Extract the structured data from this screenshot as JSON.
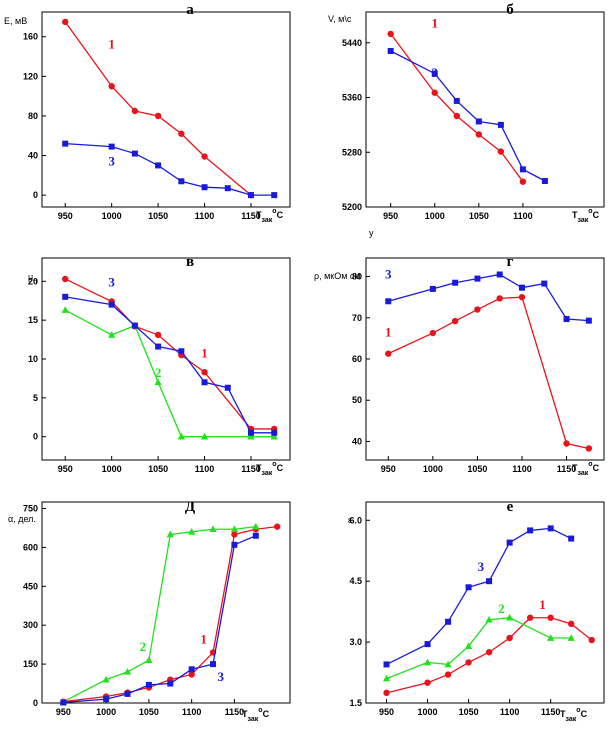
{
  "colors": {
    "s1": "#e8141b",
    "s2": "#1ee21e",
    "s3": "#1a1ad9"
  },
  "chart_data": [
    {
      "id": "a",
      "type": "line",
      "letter": "а",
      "ylabel": "E, мВ",
      "xlabel_main": "T",
      "xlabel_sub": "зак",
      "xlabel_sup": "o",
      "xlabel_end": "C",
      "xticks": [
        950,
        1000,
        1050,
        1100,
        1150
      ],
      "xtick_labels": [
        "950",
        "1000",
        "1050",
        "1100",
        "1150"
      ],
      "yticks": [
        0,
        40,
        80,
        120,
        160
      ],
      "ytick_labels": [
        "0",
        "40",
        "80",
        "120",
        "160"
      ],
      "xlim": [
        925,
        1192
      ],
      "ylim": [
        -12,
        185
      ],
      "series": [
        {
          "name": "1",
          "color": "s1",
          "marker": "circle",
          "x": [
            950,
            1000,
            1025,
            1050,
            1075,
            1100,
            1150
          ],
          "y": [
            175,
            110,
            85,
            80,
            62,
            39,
            0
          ]
        },
        {
          "name": "3",
          "color": "s3",
          "marker": "square",
          "x": [
            950,
            1000,
            1025,
            1050,
            1075,
            1100,
            1125,
            1150,
            1175
          ],
          "y": [
            52,
            49,
            42,
            30,
            14,
            8,
            7,
            0,
            0
          ]
        }
      ],
      "labels": [
        {
          "text": "1",
          "color": "s1",
          "dx": 1000,
          "dy": 148
        },
        {
          "text": "3",
          "color": "s3",
          "dx": 1000,
          "dy": 30
        }
      ]
    },
    {
      "id": "b",
      "type": "line",
      "letter": "б",
      "ylabel": "V, м\\с",
      "xlabel_main": "T",
      "xlabel_sub": "зак",
      "xlabel_sup": "o",
      "xlabel_end": "C",
      "xticks": [
        950,
        1000,
        1050,
        1100
      ],
      "xtick_labels": [
        "950",
        "1000",
        "1050",
        "1100"
      ],
      "yticks": [
        5200,
        5280,
        5360,
        5440
      ],
      "ytick_labels": [
        "5200",
        "5280",
        "5360",
        "5440"
      ],
      "xlim": [
        922,
        1192
      ],
      "ylim": [
        5200,
        5485
      ],
      "series": [
        {
          "name": "1",
          "color": "s1",
          "marker": "circle",
          "x": [
            950,
            1000,
            1025,
            1050,
            1075,
            1100
          ],
          "y": [
            5453,
            5367,
            5333,
            5306,
            5281,
            5237
          ]
        },
        {
          "name": "3",
          "color": "s3",
          "marker": "square",
          "x": [
            950,
            1000,
            1025,
            1050,
            1075,
            1100,
            1125
          ],
          "y": [
            5428,
            5395,
            5355,
            5325,
            5320,
            5255,
            5238
          ]
        }
      ],
      "labels": [
        {
          "text": "1",
          "color": "s1",
          "dx": 1000,
          "dy": 5462
        },
        {
          "text": "3",
          "color": "s3",
          "dx": 1000,
          "dy": 5390
        }
      ],
      "stray_text": "y"
    },
    {
      "id": "v",
      "type": "line",
      "letter": "в",
      "ylabel": "μ",
      "ylabel_sub": "н",
      "xlabel_main": "T",
      "xlabel_sub": "зак",
      "xlabel_sup": "o",
      "xlabel_end": "C",
      "xticks": [
        950,
        1000,
        1050,
        1100,
        1150
      ],
      "xtick_labels": [
        "950",
        "1000",
        "1050",
        "1100",
        "1150"
      ],
      "yticks": [
        0,
        5,
        10,
        15,
        20
      ],
      "ytick_labels": [
        "0",
        "5",
        "10",
        "15",
        "20"
      ],
      "xlim": [
        925,
        1192
      ],
      "ylim": [
        -3,
        23
      ],
      "series": [
        {
          "name": "1",
          "color": "s1",
          "marker": "circle",
          "x": [
            950,
            1000,
            1025,
            1050,
            1075,
            1100,
            1150,
            1175
          ],
          "y": [
            20.3,
            17.4,
            14.2,
            13.1,
            10.5,
            8.3,
            1.0,
            1.0
          ]
        },
        {
          "name": "2",
          "color": "s2",
          "marker": "triangle",
          "x": [
            950,
            1000,
            1025,
            1050,
            1075,
            1100,
            1150,
            1175
          ],
          "y": [
            16.3,
            13.1,
            14.3,
            7.0,
            0,
            0,
            0,
            0
          ]
        },
        {
          "name": "3",
          "color": "s3",
          "marker": "square",
          "x": [
            950,
            1000,
            1025,
            1050,
            1075,
            1100,
            1125,
            1150,
            1175
          ],
          "y": [
            18.0,
            17.0,
            14.3,
            11.6,
            11.0,
            7.0,
            6.3,
            0.5,
            0.5
          ]
        }
      ],
      "labels": [
        {
          "text": "3",
          "color": "s3",
          "dx": 1000,
          "dy": 19.3
        },
        {
          "text": "1",
          "color": "s1",
          "dx": 1100,
          "dy": 10.2
        },
        {
          "text": "2",
          "color": "s2",
          "dx": 1050,
          "dy": 7.7
        }
      ]
    },
    {
      "id": "g",
      "type": "line",
      "letter": "г",
      "ylabel": "ρ, мкОм см",
      "xlabel_main": "T",
      "xlabel_sub": "зак",
      "xlabel_sup": "o",
      "xlabel_end": "C",
      "xticks": [
        950,
        1000,
        1050,
        1100,
        1150
      ],
      "xtick_labels": [
        "950",
        "1000",
        "1050",
        "1100",
        "1150"
      ],
      "yticks": [
        40,
        50,
        60,
        70,
        80
      ],
      "ytick_labels": [
        "40",
        "50",
        "60",
        "70",
        "80"
      ],
      "xlim": [
        925,
        1192
      ],
      "ylim": [
        35.5,
        84.5
      ],
      "series": [
        {
          "name": "1",
          "color": "s1",
          "marker": "circle",
          "x": [
            950,
            1000,
            1025,
            1050,
            1075,
            1100,
            1150,
            1175
          ],
          "y": [
            61.3,
            66.3,
            69.2,
            72.0,
            74.7,
            75.0,
            39.5,
            38.3
          ]
        },
        {
          "name": "3",
          "color": "s3",
          "marker": "square",
          "x": [
            950,
            1000,
            1025,
            1050,
            1075,
            1100,
            1125,
            1150,
            1175
          ],
          "y": [
            74.0,
            77.0,
            78.5,
            79.5,
            80.5,
            77.3,
            78.3,
            69.7,
            69.3
          ]
        }
      ],
      "labels": [
        {
          "text": "3",
          "color": "s3",
          "dx": 950,
          "dy": 79.5
        },
        {
          "text": "1",
          "color": "s1",
          "dx": 950,
          "dy": 65.5
        }
      ]
    },
    {
      "id": "d",
      "type": "line",
      "letter": "Д",
      "ylabel": "α, дел.",
      "xlabel_main": "T",
      "xlabel_sub": "зак",
      "xlabel_sup": "o",
      "xlabel_end": "C",
      "xticks": [
        950,
        1000,
        1050,
        1100,
        1150
      ],
      "xtick_labels": [
        "950",
        "1000",
        "1050",
        "1100",
        "1150"
      ],
      "yticks": [
        0,
        150,
        300,
        450,
        600,
        750
      ],
      "ytick_labels": [
        "0",
        "150",
        "300",
        "450",
        "600",
        "750"
      ],
      "xlim": [
        925,
        1215
      ],
      "ylim": [
        0,
        775
      ],
      "series": [
        {
          "name": "1",
          "color": "s1",
          "marker": "circle",
          "x": [
            950,
            1000,
            1025,
            1050,
            1075,
            1100,
            1125,
            1150,
            1175,
            1200
          ],
          "y": [
            5,
            25,
            40,
            60,
            90,
            110,
            195,
            650,
            670,
            680
          ]
        },
        {
          "name": "2",
          "color": "s2",
          "marker": "triangle",
          "x": [
            950,
            1000,
            1025,
            1050,
            1075,
            1100,
            1125,
            1150,
            1175
          ],
          "y": [
            5,
            90,
            120,
            165,
            650,
            660,
            670,
            670,
            680
          ]
        },
        {
          "name": "3",
          "color": "s3",
          "marker": "square",
          "x": [
            950,
            1000,
            1025,
            1050,
            1075,
            1100,
            1125,
            1150,
            1175
          ],
          "y": [
            2,
            15,
            35,
            70,
            75,
            130,
            150,
            610,
            645
          ]
        }
      ],
      "labels": [
        {
          "text": "2",
          "color": "s2",
          "dx": 1043,
          "dy": 200
        },
        {
          "text": "1",
          "color": "s1",
          "dx": 1114,
          "dy": 230
        },
        {
          "text": "3",
          "color": "s3",
          "dx": 1134,
          "dy": 85
        }
      ]
    },
    {
      "id": "e",
      "type": "line",
      "letter": "е",
      "ylabel": "ε",
      "xlabel_main": "T",
      "xlabel_sub": "зак",
      "xlabel_sup": "o",
      "xlabel_end": "C",
      "xticks": [
        950,
        1000,
        1050,
        1100,
        1150
      ],
      "xtick_labels": [
        "950",
        "1000",
        "1050",
        "1100",
        "1150"
      ],
      "yticks": [
        1.5,
        3.0,
        4.5,
        6.0
      ],
      "ytick_labels": [
        "1.5",
        "3.0",
        "4.5",
        "6.0"
      ],
      "xlim": [
        925,
        1215
      ],
      "ylim": [
        1.5,
        6.45
      ],
      "series": [
        {
          "name": "1",
          "color": "s1",
          "marker": "circle",
          "x": [
            950,
            1000,
            1025,
            1050,
            1075,
            1100,
            1125,
            1150,
            1175,
            1200
          ],
          "y": [
            1.75,
            2.0,
            2.2,
            2.5,
            2.75,
            3.1,
            3.6,
            3.6,
            3.45,
            3.05
          ]
        },
        {
          "name": "2",
          "color": "s2",
          "marker": "triangle",
          "x": [
            950,
            1000,
            1025,
            1050,
            1075,
            1100,
            1150,
            1175
          ],
          "y": [
            2.1,
            2.5,
            2.45,
            2.9,
            3.55,
            3.6,
            3.1,
            3.1
          ]
        },
        {
          "name": "3",
          "color": "s3",
          "marker": "square",
          "x": [
            950,
            1000,
            1025,
            1050,
            1075,
            1100,
            1125,
            1150,
            1175
          ],
          "y": [
            2.45,
            2.95,
            3.5,
            4.35,
            4.5,
            5.45,
            5.75,
            5.8,
            5.55
          ]
        }
      ],
      "labels": [
        {
          "text": "3",
          "color": "s3",
          "dx": 1065,
          "dy": 4.75
        },
        {
          "text": "2",
          "color": "s2",
          "dx": 1090,
          "dy": 3.72
        },
        {
          "text": "1",
          "color": "s1",
          "dx": 1140,
          "dy": 3.82
        }
      ]
    }
  ]
}
